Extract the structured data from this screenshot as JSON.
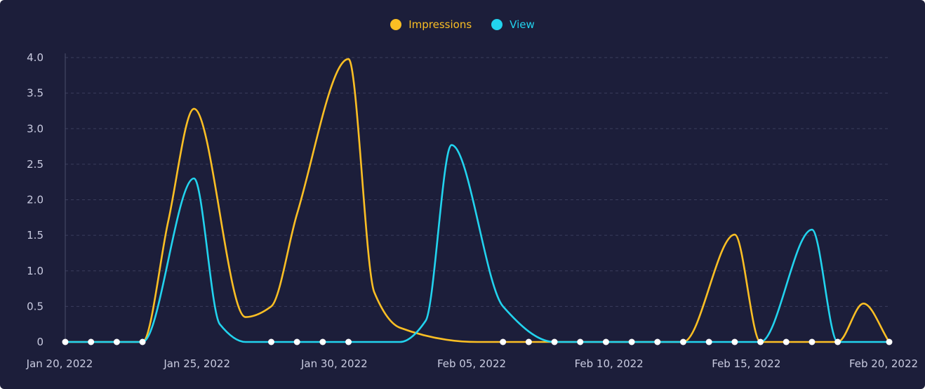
{
  "chart_data": {
    "type": "line",
    "title": "",
    "xlabel": "",
    "ylabel": "",
    "ylim": [
      0,
      4
    ],
    "yticks": [
      "0",
      "0.5",
      "1.0",
      "1.5",
      "2.0",
      "2.5",
      "3.0",
      "3.5",
      "4.0"
    ],
    "xtick_labels": [
      "Jan 20, 2022",
      "Jan 25, 2022",
      "Jan 30, 2022",
      "Feb 05, 2022",
      "Feb 10, 2022",
      "Feb 15, 2022",
      "Feb 20, 2022"
    ],
    "grid": true,
    "legend_position": "top-center",
    "series": [
      {
        "name": "Impressions",
        "color": "#fbbf24",
        "points": [
          [
            "2022-01-20",
            0
          ],
          [
            "2022-01-21",
            0
          ],
          [
            "2022-01-22",
            0
          ],
          [
            "2022-01-23",
            0
          ],
          [
            "2022-01-24",
            1.7
          ],
          [
            "2022-01-25",
            3.28
          ],
          [
            "2022-01-27",
            0.35
          ],
          [
            "2022-01-28",
            0.5
          ],
          [
            "2022-01-29",
            1.8
          ],
          [
            "2022-01-31",
            3.98
          ],
          [
            "2022-02-01",
            0.7
          ],
          [
            "2022-02-02",
            0.2
          ],
          [
            "2022-02-05",
            0
          ],
          [
            "2022-02-06",
            0
          ],
          [
            "2022-02-07",
            0
          ],
          [
            "2022-02-08",
            0
          ],
          [
            "2022-02-09",
            0
          ],
          [
            "2022-02-10",
            0
          ],
          [
            "2022-02-11",
            0
          ],
          [
            "2022-02-12",
            0
          ],
          [
            "2022-02-13",
            0
          ],
          [
            "2022-02-15",
            1.51
          ],
          [
            "2022-02-16",
            0
          ],
          [
            "2022-02-17",
            0
          ],
          [
            "2022-02-18",
            0
          ],
          [
            "2022-02-19",
            0
          ],
          [
            "2022-02-20",
            0.54
          ],
          [
            "2022-02-21",
            0
          ]
        ]
      },
      {
        "name": "View",
        "color": "#22d3ee",
        "points": [
          [
            "2022-01-20",
            0
          ],
          [
            "2022-01-21",
            0
          ],
          [
            "2022-01-22",
            0
          ],
          [
            "2022-01-23",
            0
          ],
          [
            "2022-01-25",
            2.3
          ],
          [
            "2022-01-26",
            0.25
          ],
          [
            "2022-01-27",
            0
          ],
          [
            "2022-01-28",
            0
          ],
          [
            "2022-01-29",
            0
          ],
          [
            "2022-01-30",
            0
          ],
          [
            "2022-01-31",
            0
          ],
          [
            "2022-02-02",
            0
          ],
          [
            "2022-02-03",
            0.3
          ],
          [
            "2022-02-04",
            2.77
          ],
          [
            "2022-02-06",
            0.5
          ],
          [
            "2022-02-08",
            0
          ],
          [
            "2022-02-12",
            0
          ],
          [
            "2022-02-14",
            0
          ],
          [
            "2022-02-16",
            0
          ],
          [
            "2022-02-18",
            1.58
          ],
          [
            "2022-02-19",
            0
          ],
          [
            "2022-02-21",
            0
          ]
        ]
      }
    ],
    "markers": [
      "2022-01-20",
      "2022-01-21",
      "2022-01-22",
      "2022-01-23",
      "2022-01-28",
      "2022-01-29",
      "2022-01-30",
      "2022-01-31",
      "2022-02-06",
      "2022-02-07",
      "2022-02-08",
      "2022-02-09",
      "2022-02-10",
      "2022-02-11",
      "2022-02-12",
      "2022-02-13",
      "2022-02-14",
      "2022-02-15",
      "2022-02-16",
      "2022-02-17",
      "2022-02-18",
      "2022-02-19",
      "2022-02-21"
    ]
  },
  "colors": {
    "background": "#1c1e3a",
    "grid": "#3a3d5c",
    "axis": "#4a4d6b",
    "tick_text": "#c9cbe0",
    "marker": "#ffffff"
  }
}
